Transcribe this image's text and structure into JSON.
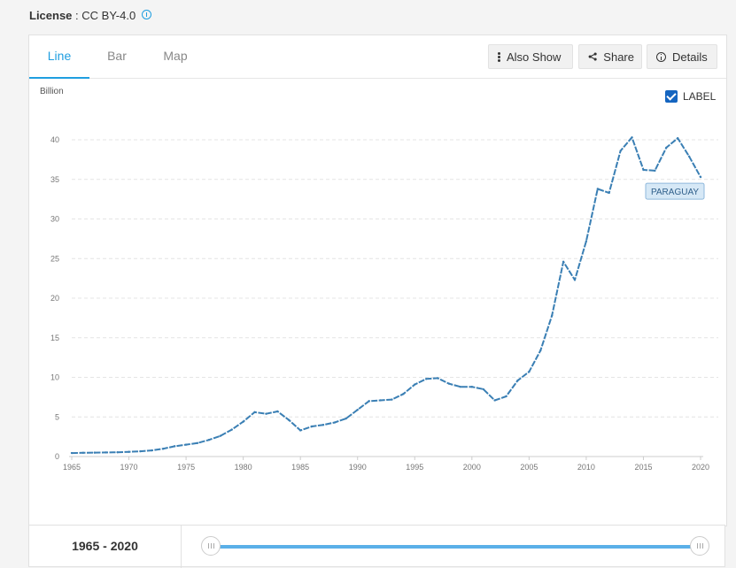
{
  "license": {
    "label": "License",
    "separator": " : ",
    "value": "CC BY-4.0"
  },
  "tabs": [
    {
      "label": "Line",
      "active": true
    },
    {
      "label": "Bar",
      "active": false
    },
    {
      "label": "Map",
      "active": false
    }
  ],
  "toolbar": {
    "also_show": "Also Show",
    "share": "Share",
    "details": "Details"
  },
  "label_toggle": {
    "text": "LABEL",
    "checked": true
  },
  "chart_data": {
    "type": "line",
    "ylabel": "Billion",
    "ylim": [
      0,
      40
    ],
    "yticks": [
      0,
      5,
      10,
      15,
      20,
      25,
      30,
      35,
      40
    ],
    "xticks": [
      1965,
      1970,
      1975,
      1980,
      1985,
      1990,
      1995,
      2000,
      2005,
      2010,
      2015,
      2020
    ],
    "grid": true,
    "series": [
      {
        "name": "PARAGUAY",
        "color": "#3a7fb4",
        "x": [
          1965,
          1966,
          1967,
          1968,
          1969,
          1970,
          1971,
          1972,
          1973,
          1974,
          1975,
          1976,
          1977,
          1978,
          1979,
          1980,
          1981,
          1982,
          1983,
          1984,
          1985,
          1986,
          1987,
          1988,
          1989,
          1990,
          1991,
          1992,
          1993,
          1994,
          1995,
          1996,
          1997,
          1998,
          1999,
          2000,
          2001,
          2002,
          2003,
          2004,
          2005,
          2006,
          2007,
          2008,
          2009,
          2010,
          2011,
          2012,
          2013,
          2014,
          2015,
          2016,
          2017,
          2018,
          2019,
          2020
        ],
        "values": [
          0.44,
          0.47,
          0.49,
          0.51,
          0.54,
          0.59,
          0.66,
          0.77,
          0.98,
          1.3,
          1.5,
          1.7,
          2.1,
          2.6,
          3.4,
          4.4,
          5.6,
          5.4,
          5.7,
          4.6,
          3.3,
          3.8,
          4.0,
          4.3,
          4.8,
          5.9,
          7.0,
          7.1,
          7.2,
          7.9,
          9.1,
          9.8,
          9.9,
          9.2,
          8.8,
          8.8,
          8.5,
          7.1,
          7.6,
          9.6,
          10.7,
          13.4,
          17.8,
          24.6,
          22.3,
          27.2,
          33.8,
          33.3,
          38.6,
          40.3,
          36.2,
          36.1,
          39.0,
          40.2,
          37.9,
          35.3
        ]
      }
    ]
  },
  "range": {
    "start": "1965",
    "dash": " - ",
    "end": "2020"
  },
  "colors": {
    "accent": "#1f9ee0",
    "line": "#3a7fb4",
    "checkbox": "#1565c0"
  }
}
